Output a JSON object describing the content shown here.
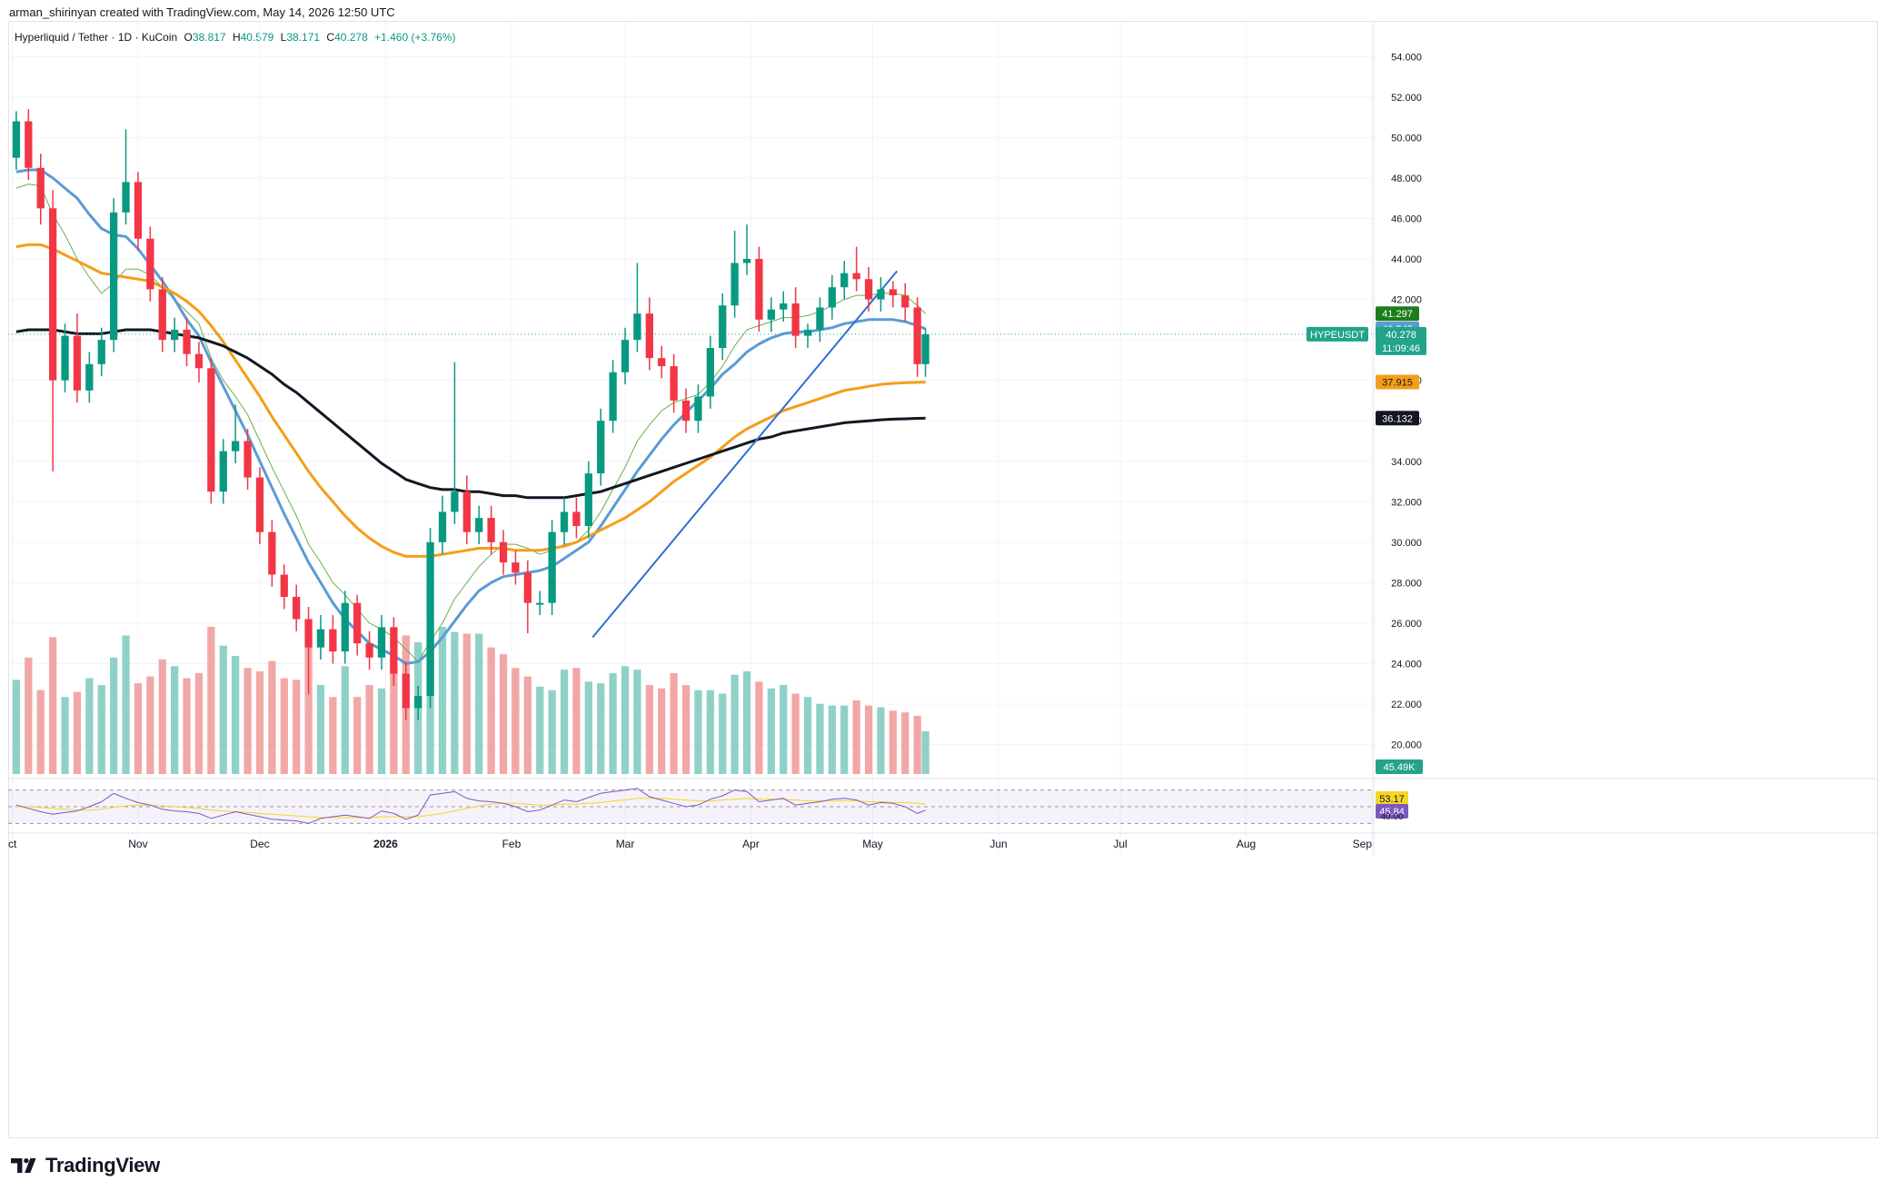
{
  "header": {
    "created_text": "arman_shirinyan created with TradingView.com, May 14, 2026 12:50 UTC"
  },
  "legend": {
    "symbol": "Hyperliquid / Tether · 1D · KuCoin",
    "open_label": "O",
    "open": "38.817",
    "high_label": "H",
    "high": "40.579",
    "low_label": "L",
    "low": "38.171",
    "close_label": "C",
    "close": "40.278",
    "change": "+1.460 (+3.76%)"
  },
  "price_axis": {
    "ticks": [
      "54.000",
      "52.000",
      "50.000",
      "48.000",
      "46.000",
      "44.000",
      "42.000",
      "40.000",
      "38.000",
      "36.000",
      "34.000",
      "32.000",
      "30.000",
      "28.000",
      "26.000",
      "24.000",
      "22.000",
      "20.000"
    ]
  },
  "price_labels": {
    "ma20": {
      "value": "41.297",
      "color": "#1b7e1b"
    },
    "ma50": {
      "value": "40.545",
      "color": "#5b9bd5"
    },
    "symbol_tag": {
      "value": "HYPEUSDT",
      "color": "#22a38a"
    },
    "last_price": {
      "value": "40.278",
      "color": "#22a38a"
    },
    "countdown": {
      "value": "11:09:46",
      "color": "#22a38a"
    },
    "ma100": {
      "value": "37.915",
      "color": "#f59d18"
    },
    "ma200": {
      "value": "36.132",
      "color": "#131722"
    },
    "volume": {
      "value": "45.49K",
      "color": "#22a38a"
    },
    "rsi_ma": {
      "value": "53.17",
      "color": "#f5d623"
    },
    "rsi": {
      "value": "45.84",
      "color": "#7e57c2"
    },
    "rsi_level": {
      "value": "40.00"
    }
  },
  "time_axis": {
    "labels": [
      "ct",
      "Nov",
      "Dec",
      "2026",
      "Feb",
      "Mar",
      "Apr",
      "May",
      "Jun",
      "Jul",
      "Aug",
      "Sep"
    ]
  },
  "footer": {
    "logo_text": "TradingView"
  },
  "chart_data": {
    "type": "candlestick",
    "symbol": "HYPEUSDT",
    "title": "Hyperliquid / Tether · 1D · KuCoin",
    "ylim": [
      18.5,
      55
    ],
    "colors": {
      "up": "#089981",
      "down": "#f23645",
      "vol_up": "#8fd1c7",
      "vol_down": "#f2a7a7"
    },
    "candles": {
      "dates": [
        "2025-10-02",
        "2025-10-05",
        "2025-10-08",
        "2025-10-11",
        "2025-10-14",
        "2025-10-17",
        "2025-10-20",
        "2025-10-23",
        "2025-10-26",
        "2025-10-29",
        "2025-11-01",
        "2025-11-04",
        "2025-11-07",
        "2025-11-10",
        "2025-11-13",
        "2025-11-16",
        "2025-11-19",
        "2025-11-22",
        "2025-11-25",
        "2025-11-28",
        "2025-12-01",
        "2025-12-04",
        "2025-12-07",
        "2025-12-10",
        "2025-12-13",
        "2025-12-16",
        "2025-12-19",
        "2025-12-22",
        "2025-12-25",
        "2025-12-28",
        "2025-12-31",
        "2026-01-03",
        "2026-01-06",
        "2026-01-09",
        "2026-01-12",
        "2026-01-15",
        "2026-01-18",
        "2026-01-21",
        "2026-01-24",
        "2026-01-27",
        "2026-01-30",
        "2026-02-02",
        "2026-02-05",
        "2026-02-08",
        "2026-02-11",
        "2026-02-14",
        "2026-02-17",
        "2026-02-20",
        "2026-02-23",
        "2026-02-26",
        "2026-03-01",
        "2026-03-04",
        "2026-03-07",
        "2026-03-10",
        "2026-03-13",
        "2026-03-16",
        "2026-03-19",
        "2026-03-22",
        "2026-03-25",
        "2026-03-28",
        "2026-03-31",
        "2026-04-03",
        "2026-04-06",
        "2026-04-09",
        "2026-04-12",
        "2026-04-15",
        "2026-04-18",
        "2026-04-21",
        "2026-04-24",
        "2026-04-27",
        "2026-04-30",
        "2026-05-03",
        "2026-05-06",
        "2026-05-09",
        "2026-05-12",
        "2026-05-14"
      ],
      "open": [
        49.0,
        50.8,
        48.5,
        46.5,
        38.0,
        40.2,
        37.5,
        38.8,
        40.0,
        46.3,
        47.8,
        45.0,
        42.5,
        40.0,
        40.5,
        39.3,
        38.6,
        32.5,
        34.5,
        35.0,
        33.2,
        30.5,
        28.4,
        27.3,
        26.2,
        24.8,
        25.7,
        24.6,
        27.0,
        25.0,
        24.3,
        25.8,
        23.5,
        21.8,
        22.4,
        30.0,
        31.5,
        32.5,
        30.5,
        31.2,
        30.0,
        29.0,
        28.5,
        27.0,
        27.0,
        30.5,
        31.5,
        30.8,
        33.4,
        36.0,
        38.4,
        40.0,
        41.3,
        39.1,
        38.7,
        37.0,
        36.0,
        37.2,
        39.6,
        41.7,
        43.8,
        44.0,
        41.0,
        41.5,
        41.8,
        40.2,
        40.5,
        41.6,
        42.6,
        43.3,
        43.0,
        42.0,
        42.5,
        42.2,
        41.6,
        38.8
      ],
      "close": [
        50.8,
        48.5,
        46.5,
        38.0,
        40.2,
        37.5,
        38.8,
        40.0,
        46.3,
        47.8,
        45.0,
        42.5,
        40.0,
        40.5,
        39.3,
        38.6,
        32.5,
        34.5,
        35.0,
        33.2,
        30.5,
        28.4,
        27.3,
        26.2,
        24.8,
        25.7,
        24.6,
        27.0,
        25.0,
        24.3,
        25.8,
        23.5,
        21.8,
        22.4,
        30.0,
        31.5,
        32.5,
        30.5,
        31.2,
        30.0,
        29.0,
        28.5,
        27.0,
        27.0,
        30.5,
        31.5,
        30.8,
        33.4,
        36.0,
        38.4,
        40.0,
        41.3,
        39.1,
        38.7,
        37.0,
        36.0,
        37.2,
        39.6,
        41.7,
        43.8,
        44.0,
        41.0,
        41.5,
        41.8,
        40.2,
        40.5,
        41.6,
        42.6,
        43.3,
        43.0,
        42.0,
        42.5,
        42.2,
        41.6,
        38.8,
        40.278
      ],
      "high": [
        51.3,
        51.4,
        49.2,
        47.4,
        40.8,
        41.3,
        39.4,
        40.6,
        47.0,
        50.4,
        48.3,
        45.6,
        43.1,
        41.1,
        41.1,
        39.9,
        39.1,
        35.1,
        36.8,
        35.6,
        33.7,
        31.1,
        28.9,
        27.9,
        26.8,
        26.4,
        26.4,
        27.6,
        27.4,
        25.6,
        26.4,
        26.3,
        24.1,
        22.9,
        30.7,
        32.3,
        38.9,
        33.3,
        31.8,
        31.8,
        30.6,
        29.6,
        29.1,
        27.6,
        31.1,
        32.2,
        32.2,
        34.0,
        36.6,
        39.0,
        40.6,
        43.8,
        42.1,
        39.7,
        39.3,
        37.6,
        37.8,
        40.2,
        42.3,
        45.4,
        45.7,
        44.6,
        42.1,
        42.4,
        42.6,
        40.8,
        42.1,
        43.2,
        43.9,
        44.6,
        43.6,
        43.1,
        42.9,
        42.8,
        42.1,
        40.579
      ],
      "low": [
        48.4,
        47.9,
        45.7,
        33.5,
        37.4,
        36.9,
        36.9,
        38.2,
        39.4,
        45.7,
        44.4,
        41.9,
        39.4,
        39.4,
        38.7,
        37.9,
        31.9,
        31.9,
        33.9,
        32.6,
        29.9,
        27.8,
        26.7,
        25.6,
        22.5,
        24.2,
        24.0,
        24.0,
        24.4,
        23.7,
        23.7,
        22.9,
        21.2,
        21.2,
        21.8,
        29.4,
        30.9,
        29.9,
        29.9,
        29.4,
        28.4,
        27.9,
        25.5,
        26.4,
        26.4,
        29.9,
        30.2,
        30.2,
        32.8,
        35.4,
        37.8,
        39.4,
        38.5,
        38.1,
        36.4,
        35.4,
        35.4,
        36.6,
        39.0,
        41.1,
        43.2,
        40.4,
        40.4,
        40.9,
        39.6,
        39.6,
        39.9,
        41.0,
        42.0,
        42.4,
        41.4,
        41.4,
        41.6,
        40.9,
        38.171,
        38.171
      ],
      "volume": [
        55,
        68,
        49,
        80,
        45,
        48,
        56,
        52,
        68,
        81,
        53,
        57,
        67,
        63,
        56,
        59,
        86,
        75,
        69,
        62,
        60,
        66,
        56,
        55,
        75,
        52,
        45,
        63,
        45,
        52,
        50,
        67,
        81,
        77,
        80,
        86,
        83,
        82,
        82,
        74,
        70,
        62,
        57,
        51,
        49,
        61,
        62,
        54,
        53,
        59,
        63,
        61,
        52,
        50,
        59,
        52,
        49,
        49,
        47,
        58,
        60,
        54,
        50,
        52,
        47,
        45,
        41,
        40,
        40,
        43,
        40,
        39,
        37,
        36,
        34,
        25
      ]
    },
    "moving_averages": [
      {
        "name": "MA20",
        "color": "#6ab04c",
        "values": [
          47.5,
          47.7,
          47.6,
          46.2,
          45.2,
          44.0,
          43.1,
          42.3,
          42.8,
          43.5,
          43.5,
          43.2,
          42.6,
          42.0,
          41.4,
          40.8,
          39.1,
          38.0,
          37.2,
          36.3,
          35.0,
          33.7,
          32.5,
          31.3,
          29.9,
          29.0,
          28.0,
          27.4,
          26.7,
          26.0,
          25.7,
          25.3,
          24.7,
          24.1,
          25.1,
          26.0,
          27.2,
          28.0,
          28.8,
          29.4,
          29.9,
          29.9,
          29.7,
          29.4,
          29.6,
          29.9,
          30.0,
          30.6,
          31.5,
          32.6,
          33.7,
          35.0,
          35.8,
          36.5,
          36.9,
          37.1,
          37.3,
          37.9,
          38.7,
          39.7,
          40.5,
          40.7,
          40.9,
          41.1,
          41.1,
          41.2,
          41.4,
          41.7,
          42.0,
          42.2,
          42.2,
          42.3,
          42.3,
          42.2,
          41.7,
          41.297
        ]
      },
      {
        "name": "MA50",
        "color": "#5b9bd5",
        "values": [
          48.3,
          48.4,
          48.4,
          48.0,
          47.5,
          47.0,
          46.2,
          45.5,
          45.2,
          45.1,
          44.5,
          43.7,
          42.9,
          42.0,
          41.0,
          40.2,
          38.9,
          37.7,
          36.5,
          35.3,
          34.0,
          32.7,
          31.4,
          30.2,
          29.0,
          28.0,
          27.0,
          26.2,
          25.6,
          25.0,
          24.7,
          24.4,
          24.0,
          24.1,
          24.6,
          25.3,
          26.1,
          26.9,
          27.6,
          28.0,
          28.3,
          28.4,
          28.5,
          28.6,
          28.8,
          29.2,
          29.6,
          30.0,
          30.8,
          31.7,
          32.6,
          33.5,
          34.3,
          35.1,
          35.8,
          36.4,
          37.0,
          37.6,
          38.3,
          38.8,
          39.4,
          39.8,
          40.1,
          40.3,
          40.4,
          40.4,
          40.5,
          40.6,
          40.8,
          40.9,
          41.0,
          41.0,
          41.0,
          40.9,
          40.7,
          40.545
        ]
      },
      {
        "name": "MA100",
        "color": "#f59d18",
        "values": [
          44.6,
          44.7,
          44.7,
          44.5,
          44.2,
          43.9,
          43.6,
          43.3,
          43.2,
          43.1,
          43.0,
          42.9,
          42.6,
          42.3,
          41.9,
          41.4,
          40.7,
          39.9,
          39.0,
          38.1,
          37.2,
          36.2,
          35.3,
          34.4,
          33.5,
          32.7,
          32.0,
          31.3,
          30.7,
          30.2,
          29.8,
          29.5,
          29.3,
          29.3,
          29.3,
          29.4,
          29.5,
          29.6,
          29.7,
          29.7,
          29.7,
          29.6,
          29.6,
          29.6,
          29.7,
          29.8,
          30.0,
          30.3,
          30.6,
          30.9,
          31.2,
          31.6,
          32.0,
          32.5,
          33.0,
          33.4,
          33.8,
          34.2,
          34.7,
          35.2,
          35.6,
          35.9,
          36.2,
          36.5,
          36.7,
          36.9,
          37.1,
          37.3,
          37.5,
          37.6,
          37.7,
          37.8,
          37.85,
          37.88,
          37.9,
          37.915
        ]
      },
      {
        "name": "MA200",
        "color": "#131722",
        "values": [
          40.4,
          40.5,
          40.5,
          40.5,
          40.4,
          40.3,
          40.3,
          40.3,
          40.4,
          40.5,
          40.5,
          40.5,
          40.4,
          40.3,
          40.2,
          40.1,
          39.9,
          39.7,
          39.4,
          39.1,
          38.7,
          38.3,
          37.8,
          37.4,
          36.9,
          36.4,
          35.9,
          35.4,
          34.9,
          34.4,
          33.9,
          33.5,
          33.1,
          32.9,
          32.7,
          32.6,
          32.6,
          32.5,
          32.5,
          32.4,
          32.3,
          32.3,
          32.2,
          32.2,
          32.2,
          32.2,
          32.3,
          32.4,
          32.5,
          32.7,
          32.9,
          33.1,
          33.3,
          33.5,
          33.7,
          33.9,
          34.1,
          34.3,
          34.5,
          34.7,
          34.9,
          35.1,
          35.2,
          35.4,
          35.5,
          35.6,
          35.7,
          35.8,
          35.9,
          35.95,
          36.0,
          36.05,
          36.08,
          36.1,
          36.12,
          36.132
        ]
      }
    ],
    "trendline": {
      "from": {
        "x": "2026-02-21",
        "y": 25.3
      },
      "to": {
        "x": "2026-05-07",
        "y": 43.4
      },
      "color": "#2e6fd1"
    },
    "rsi": {
      "ylim": [
        25,
        75
      ],
      "levels": [
        70,
        50,
        30
      ],
      "rsi_values": [
        52,
        48,
        44,
        41,
        43,
        45,
        50,
        56,
        66,
        60,
        55,
        52,
        47,
        45,
        44,
        42,
        36,
        40,
        44,
        41,
        38,
        35,
        34,
        33,
        30,
        36,
        38,
        40,
        38,
        36,
        45,
        42,
        35,
        40,
        64,
        66,
        68,
        60,
        57,
        56,
        54,
        50,
        44,
        46,
        52,
        58,
        56,
        61,
        66,
        68,
        70,
        72,
        62,
        58,
        54,
        50,
        52,
        59,
        63,
        70,
        68,
        56,
        58,
        60,
        52,
        54,
        56,
        59,
        60,
        58,
        52,
        55,
        54,
        50,
        42,
        45.84
      ],
      "ma_values": [
        50,
        50,
        49,
        48,
        47,
        46,
        46,
        47,
        49,
        51,
        52,
        52,
        51,
        50,
        49,
        48,
        46,
        45,
        44,
        43,
        42,
        41,
        40,
        39,
        38,
        37,
        37,
        37,
        37,
        37,
        38,
        38,
        38,
        38,
        40,
        42,
        45,
        48,
        51,
        53,
        54,
        54,
        53,
        52,
        52,
        53,
        53,
        54,
        55,
        57,
        58,
        60,
        60,
        60,
        59,
        58,
        57,
        57,
        58,
        59,
        60,
        59,
        59,
        59,
        58,
        57,
        57,
        57,
        57,
        57,
        56,
        56,
        55,
        55,
        54,
        53.17
      ]
    }
  }
}
